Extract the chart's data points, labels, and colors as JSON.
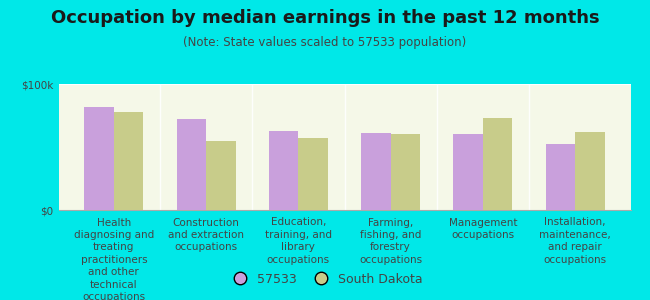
{
  "title": "Occupation by median earnings in the past 12 months",
  "subtitle": "(Note: State values scaled to 57533 population)",
  "categories": [
    "Health\ndiagnosing and\ntreating\npractitioners\nand other\ntechnical\noccupations",
    "Construction\nand extraction\noccupations",
    "Education,\ntraining, and\nlibrary\noccupations",
    "Farming,\nfishing, and\nforestry\noccupations",
    "Management\noccupations",
    "Installation,\nmaintenance,\nand repair\noccupations"
  ],
  "values_57533": [
    82000,
    72000,
    63000,
    61000,
    60000,
    52000
  ],
  "values_sd": [
    78000,
    55000,
    57000,
    60000,
    73000,
    62000
  ],
  "color_57533": "#c9a0dc",
  "color_sd": "#c8cc8a",
  "ylim": [
    0,
    100000
  ],
  "ytick_labels": [
    "$0",
    "$100k"
  ],
  "legend_57533": "57533",
  "legend_sd": "South Dakota",
  "background_color": "#00e8e8",
  "plot_bg_top": "#e8edd8",
  "plot_bg_bottom": "#f5f8e8",
  "bar_width": 0.32,
  "title_fontsize": 13,
  "subtitle_fontsize": 8.5,
  "tick_fontsize": 7.5,
  "legend_fontsize": 9,
  "title_color": "#1a1a1a",
  "subtitle_color": "#444444",
  "tick_color": "#444444"
}
